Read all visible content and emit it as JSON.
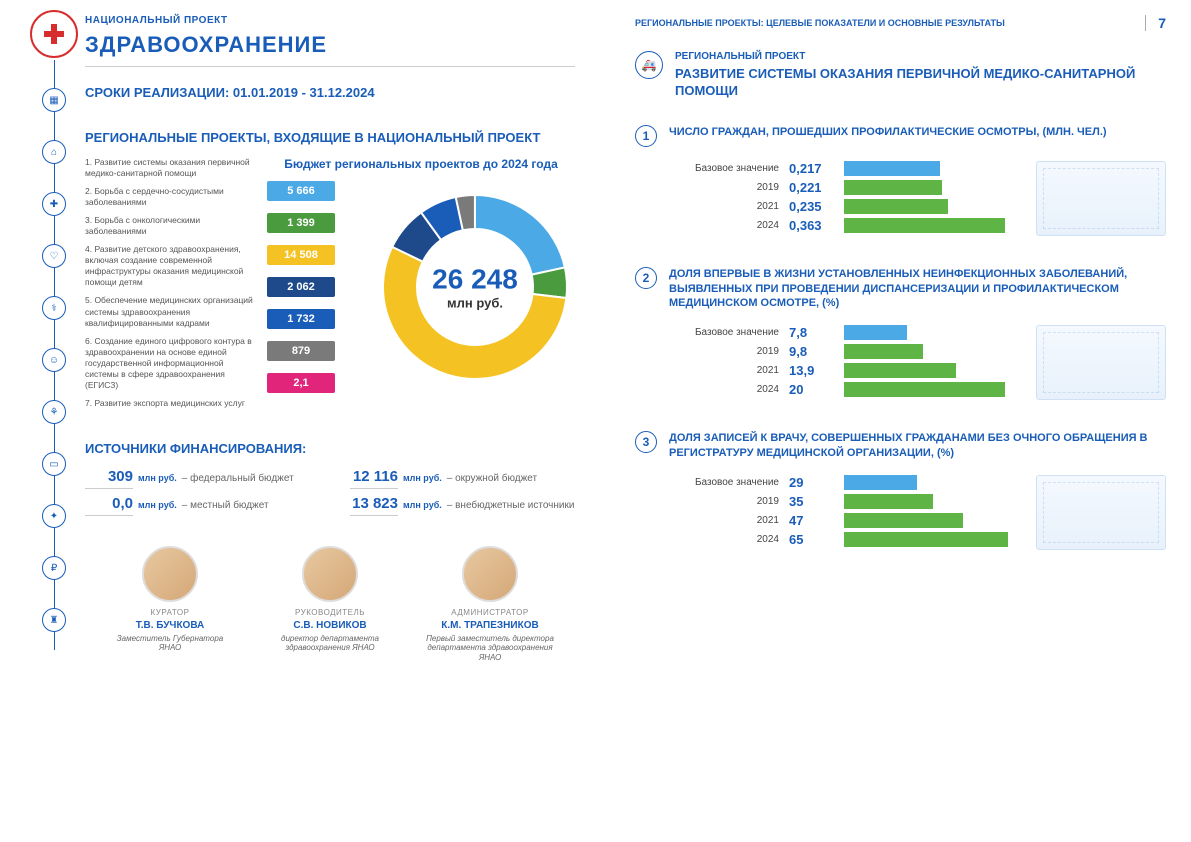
{
  "colors": {
    "primary": "#1a5db8",
    "accent_red": "#d82d2d",
    "bar_base": "#4ba9e6",
    "bar_other": "#5fb446",
    "bg": "#ffffff",
    "text": "#333333",
    "muted": "#666666"
  },
  "header": {
    "subtitle": "НАЦИОНАЛЬНЫЙ ПРОЕКТ",
    "title": "ЗДРАВООХРАНЕНИЕ",
    "timeline_label": "СРОКИ РЕАЛИЗАЦИИ: 01.01.2019 - 31.12.2024"
  },
  "right_header": {
    "text": "РЕГИОНАЛЬНЫЕ ПРОЕКТЫ: ЦЕЛЕВЫЕ ПОКАЗАТЕЛИ И ОСНОВНЫЕ РЕЗУЛЬТАТЫ",
    "page": "7"
  },
  "projects_title": "РЕГИОНАЛЬНЫЕ ПРОЕКТЫ, ВХОДЯЩИЕ В НАЦИОНАЛЬНЫЙ ПРОЕКТ",
  "budget_title": "Бюджет региональных проектов до 2024 года",
  "projects": [
    {
      "i": "1.",
      "t": "Развитие системы оказания первичной медико-санитарной помощи"
    },
    {
      "i": "2.",
      "t": "Борьба с сердечно-сосудистыми заболеваниями"
    },
    {
      "i": "3.",
      "t": "Борьба с онкологическими заболеваниями"
    },
    {
      "i": "4.",
      "t": "Развитие детского здравоохранения, включая создание современной инфраструктуры оказания медицинской помощи детям"
    },
    {
      "i": "5.",
      "t": "Обеспечение медицинских организаций системы здравоохранения квалифицированными кадрами"
    },
    {
      "i": "6.",
      "t": "Создание единого цифрового контура в здравоохранении на основе единой государственной информационной системы в сфере здравоохранения (ЕГИСЗ)"
    },
    {
      "i": "7.",
      "t": "Развитие экспорта медицинских услуг"
    }
  ],
  "donut": {
    "type": "donut",
    "total": "26 248",
    "unit": "млн руб.",
    "segments": [
      {
        "label": "5 666",
        "value": 5666,
        "color": "#4ba9e6"
      },
      {
        "label": "1 399",
        "value": 1399,
        "color": "#4a9b3e"
      },
      {
        "label": "14 508",
        "value": 14508,
        "color": "#f5c224"
      },
      {
        "label": "2 062",
        "value": 2062,
        "color": "#1e4a8c"
      },
      {
        "label": "1 732",
        "value": 1732,
        "color": "#1a5db8"
      },
      {
        "label": "879",
        "value": 879,
        "color": "#7a7a7a"
      },
      {
        "label": "2,1",
        "value": 2.1,
        "color": "#e0257b"
      }
    ],
    "inner_radius": 0.62,
    "outer_radius": 1.0
  },
  "finance": {
    "title": "ИСТОЧНИКИ ФИНАНСИРОВАНИЯ:",
    "items": [
      {
        "num": "309",
        "unit": "млн руб.",
        "desc": "– федеральный бюджет"
      },
      {
        "num": "12 116",
        "unit": "млн руб.",
        "desc": "– окружной бюджет"
      },
      {
        "num": "0,0",
        "unit": "млн руб.",
        "desc": "– местный бюджет"
      },
      {
        "num": "13 823",
        "unit": "млн руб.",
        "desc": "– внебюджетные источники"
      }
    ]
  },
  "people": [
    {
      "role": "КУРАТОР",
      "name": "Т.В. БУЧКОВА",
      "pos": "Заместитель Губернатора ЯНАО"
    },
    {
      "role": "РУКОВОДИТЕЛЬ",
      "name": "С.В. НОВИКОВ",
      "pos": "директор департамента здравоохранения ЯНАО"
    },
    {
      "role": "АДМИНИСТРАТОР",
      "name": "К.М. ТРАПЕЗНИКОВ",
      "pos": "Первый заместитель директора департамента здравоохранения ЯНАО"
    }
  ],
  "regional": {
    "label": "РЕГИОНАЛЬНЫЙ ПРОЕКТ",
    "title": "РАЗВИТИЕ СИСТЕМЫ ОКАЗАНИЯ ПЕРВИЧНОЙ МЕДИКО-САНИТАРНОЙ ПОМОЩИ"
  },
  "indicators": [
    {
      "num": "1",
      "title": "ЧИСЛО ГРАЖДАН, ПРОШЕДШИХ ПРОФИЛАКТИЧЕСКИЕ ОСМОТРЫ, (МЛН. ЧЕЛ.)",
      "max": 0.4,
      "rows": [
        {
          "label": "Базовое значение",
          "value": "0,217",
          "num": 0.217,
          "color": "#4ba9e6"
        },
        {
          "label": "2019",
          "value": "0,221",
          "num": 0.221,
          "color": "#5fb446"
        },
        {
          "label": "2021",
          "value": "0,235",
          "num": 0.235,
          "color": "#5fb446"
        },
        {
          "label": "2024",
          "value": "0,363",
          "num": 0.363,
          "color": "#5fb446"
        }
      ]
    },
    {
      "num": "2",
      "title": "ДОЛЯ ВПЕРВЫЕ В ЖИЗНИ УСТАНОВЛЕННЫХ НЕИНФЕКЦИОННЫХ ЗАБОЛЕВАНИЙ, ВЫЯВЛЕННЫХ ПРИ ПРОВЕДЕНИИ ДИСПАНСЕРИЗАЦИИ И ПРОФИЛАКТИЧЕСКОМ МЕДИЦИНСКОМ ОСМОТРЕ, (%)",
      "max": 22,
      "rows": [
        {
          "label": "Базовое значение",
          "value": "7,8",
          "num": 7.8,
          "color": "#4ba9e6"
        },
        {
          "label": "2019",
          "value": "9,8",
          "num": 9.8,
          "color": "#5fb446"
        },
        {
          "label": "2021",
          "value": "13,9",
          "num": 13.9,
          "color": "#5fb446"
        },
        {
          "label": "2024",
          "value": "20",
          "num": 20,
          "color": "#5fb446"
        }
      ]
    },
    {
      "num": "3",
      "title": "ДОЛЯ ЗАПИСЕЙ К ВРАЧУ, СОВЕРШЕННЫХ ГРАЖДАНАМИ БЕЗ ОЧНОГО ОБРАЩЕНИЯ В РЕГИСТРАТУРУ МЕДИЦИНСКОЙ ОРГАНИЗАЦИИ, (%)",
      "max": 70,
      "rows": [
        {
          "label": "Базовое значение",
          "value": "29",
          "num": 29,
          "color": "#4ba9e6"
        },
        {
          "label": "2019",
          "value": "35",
          "num": 35,
          "color": "#5fb446"
        },
        {
          "label": "2021",
          "value": "47",
          "num": 47,
          "color": "#5fb446"
        },
        {
          "label": "2024",
          "value": "65",
          "num": 65,
          "color": "#5fb446"
        }
      ]
    }
  ]
}
